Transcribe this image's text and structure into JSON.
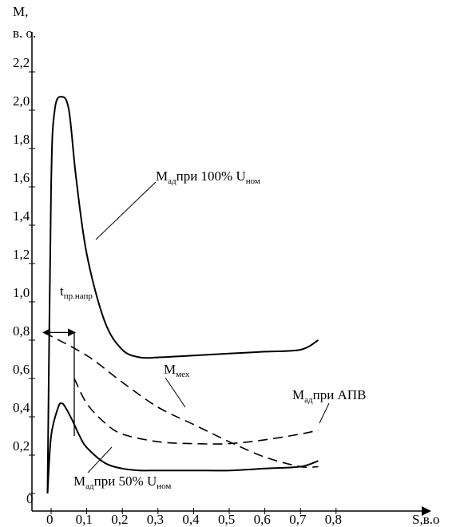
{
  "chart_data": {
    "type": "line",
    "title": "",
    "y_axis": {
      "label_main": "M,",
      "label_unit": "в. о.",
      "range": [
        0,
        2.3
      ],
      "ticks": [
        "0",
        "0,2",
        "0,4",
        "0,6",
        "0,8",
        "1,0",
        "1,2",
        "1,4",
        "1,6",
        "1,8",
        "2,0",
        "2,2"
      ]
    },
    "x_axis": {
      "label": "S,в.о",
      "range": [
        -0.02,
        0.8
      ],
      "ticks": [
        "0",
        "0,1",
        "0,2",
        "0,3",
        "0,4",
        "0,5",
        "0,6",
        "0,7",
        "0,8"
      ]
    },
    "annotations": {
      "ad100": {
        "main": "M",
        "sub": "ад",
        "rest": "при 100% U",
        "sub2": "ном"
      },
      "ad50": {
        "main": "M",
        "sub": "ад",
        "rest": "при 50% U",
        "sub2": "ном"
      },
      "adapv": {
        "main": "M",
        "sub": "ад",
        "rest": "при АПВ"
      },
      "mech": {
        "main": "M",
        "sub": "мех"
      },
      "tpr": {
        "main": "t",
        "sub": "пр.напр"
      }
    },
    "series": [
      {
        "label_ref": "ad100",
        "style": "solid",
        "points": [
          [
            -0.01,
            0.0
          ],
          [
            0.0,
            1.6
          ],
          [
            0.01,
            2.0
          ],
          [
            0.03,
            2.07
          ],
          [
            0.05,
            2.0
          ],
          [
            0.07,
            1.65
          ],
          [
            0.1,
            1.25
          ],
          [
            0.15,
            0.9
          ],
          [
            0.2,
            0.75
          ],
          [
            0.25,
            0.71
          ],
          [
            0.3,
            0.71
          ],
          [
            0.4,
            0.72
          ],
          [
            0.5,
            0.73
          ],
          [
            0.6,
            0.74
          ],
          [
            0.7,
            0.75
          ],
          [
            0.75,
            0.8
          ]
        ]
      },
      {
        "label_ref": "ad50",
        "style": "solid",
        "points": [
          [
            -0.01,
            0.0
          ],
          [
            0.0,
            0.3
          ],
          [
            0.02,
            0.45
          ],
          [
            0.03,
            0.47
          ],
          [
            0.04,
            0.45
          ],
          [
            0.06,
            0.38
          ],
          [
            0.08,
            0.3
          ],
          [
            0.1,
            0.24
          ],
          [
            0.15,
            0.16
          ],
          [
            0.2,
            0.13
          ],
          [
            0.25,
            0.12
          ],
          [
            0.3,
            0.12
          ],
          [
            0.4,
            0.12
          ],
          [
            0.5,
            0.12
          ],
          [
            0.6,
            0.13
          ],
          [
            0.7,
            0.14
          ],
          [
            0.75,
            0.17
          ]
        ]
      },
      {
        "label_ref": "adapv",
        "style": "dashed",
        "points": [
          [
            0.065,
            0.6
          ],
          [
            0.1,
            0.47
          ],
          [
            0.15,
            0.37
          ],
          [
            0.2,
            0.31
          ],
          [
            0.3,
            0.27
          ],
          [
            0.4,
            0.26
          ],
          [
            0.5,
            0.26
          ],
          [
            0.6,
            0.28
          ],
          [
            0.7,
            0.31
          ],
          [
            0.75,
            0.33
          ]
        ]
      },
      {
        "label_ref": "mech",
        "style": "dashed",
        "points": [
          [
            -0.02,
            0.84
          ],
          [
            0.1,
            0.72
          ],
          [
            0.2,
            0.58
          ],
          [
            0.3,
            0.45
          ],
          [
            0.4,
            0.36
          ],
          [
            0.5,
            0.27
          ],
          [
            0.6,
            0.19
          ],
          [
            0.7,
            0.14
          ],
          [
            0.75,
            0.14
          ]
        ]
      }
    ],
    "markers": {
      "tpr_arrow": {
        "x_start": -0.02,
        "x_end": 0.065,
        "y": 0.84
      },
      "vline": {
        "x": 0.065,
        "y_from": 0.84,
        "y_to": 0.3
      }
    }
  }
}
